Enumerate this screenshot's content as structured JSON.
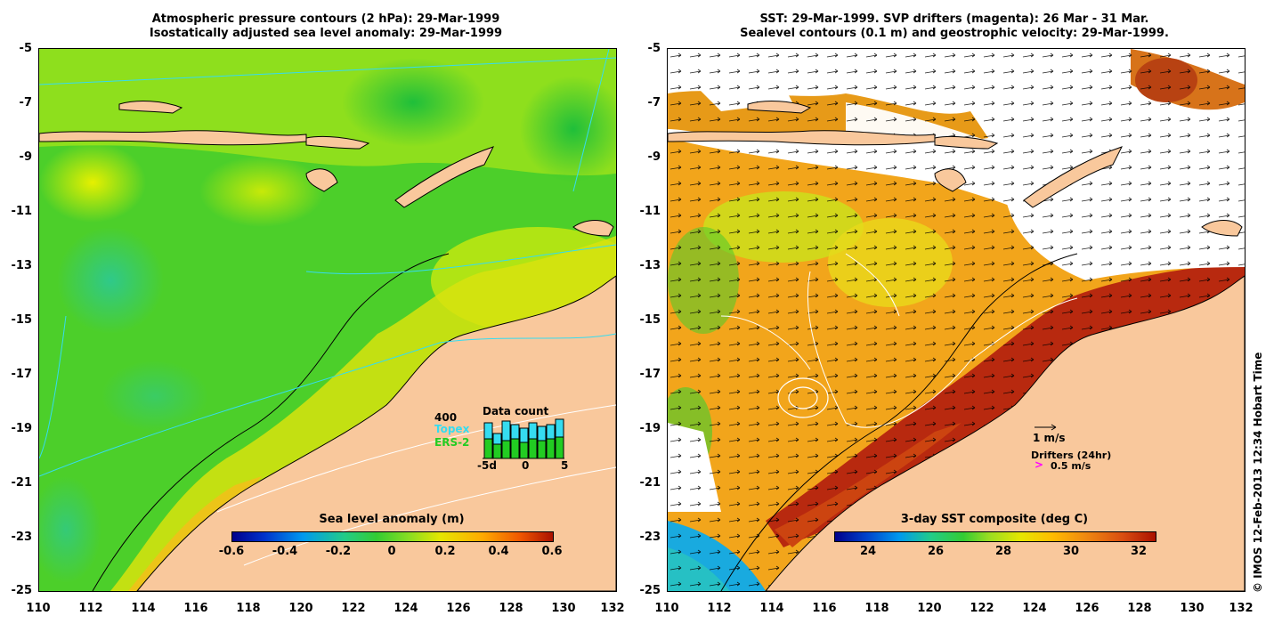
{
  "left_panel": {
    "title_line1": "Atmospheric pressure contours (2 hPa): 29-Mar-1999",
    "title_line2": "Isostatically adjusted sea level anomaly: 29-Mar-1999",
    "y_ticks": [
      "-5",
      "-7",
      "-9",
      "-11",
      "-13",
      "-15",
      "-17",
      "-19",
      "-21",
      "-23",
      "-25"
    ],
    "x_ticks": [
      "110",
      "112",
      "114",
      "116",
      "118",
      "120",
      "122",
      "124",
      "126",
      "128",
      "130",
      "132"
    ],
    "colorbar": {
      "title": "Sea level anomaly (m)",
      "ticks": [
        "-0.6",
        "-0.4",
        "-0.2",
        "0",
        "0.2",
        "0.4",
        "0.6"
      ],
      "range": [
        -0.6,
        0.6
      ]
    },
    "data_count": {
      "title": "Data count",
      "max_label": "400",
      "topex_label": "Topex",
      "ers2_label": "ERS-2",
      "x_ticks": [
        "-5d",
        "0",
        "5"
      ],
      "topex_color": "#35dcf0",
      "ers2_color": "#22cc22"
    }
  },
  "right_panel": {
    "title_line1": "SST: 29-Mar-1999. SVP drifters (magenta): 26 Mar - 31 Mar.",
    "title_line2": "Sealevel contours (0.1 m) and geostrophic velocity: 29-Mar-1999.",
    "y_ticks": [
      "-5",
      "-7",
      "-9",
      "-11",
      "-13",
      "-15",
      "-17",
      "-19",
      "-21",
      "-23",
      "-25"
    ],
    "x_ticks": [
      "110",
      "112",
      "114",
      "116",
      "118",
      "120",
      "122",
      "124",
      "126",
      "128",
      "130",
      "132"
    ],
    "colorbar": {
      "title": "3-day SST composite (deg C)",
      "ticks": [
        "24",
        "26",
        "28",
        "30",
        "32"
      ],
      "range": [
        23,
        32.5
      ]
    },
    "velocity_legend": "1 m/s",
    "drifters_label": "Drifters (24hr)",
    "drifters_speed": "0.5 m/s",
    "drifter_color": "#ff00ff"
  },
  "credit": "© IMOS 12-Feb-2013 12:34 Hobart Time",
  "colors": {
    "land": "#f9c89c",
    "missing": "#ffffff"
  }
}
